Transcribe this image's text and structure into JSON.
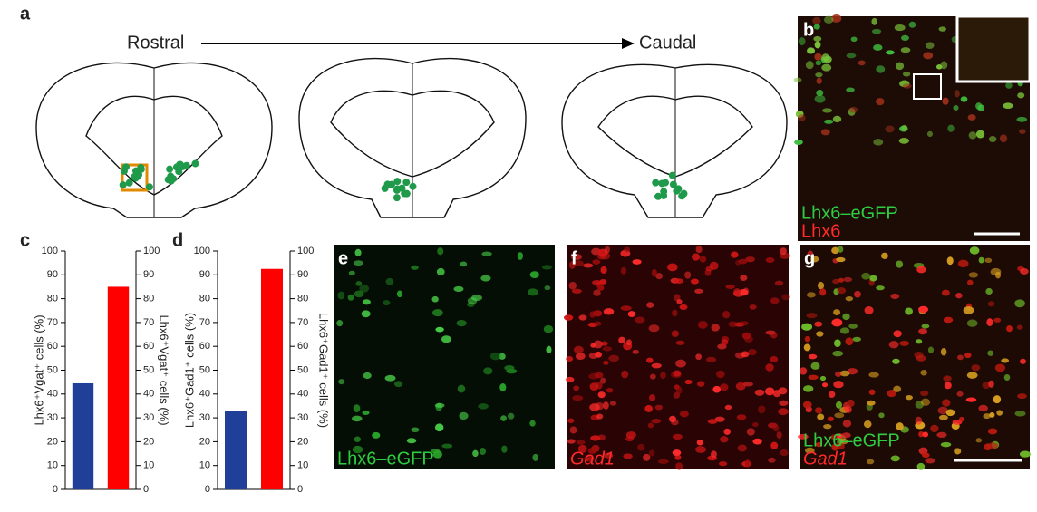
{
  "panels": {
    "a": {
      "label": "a",
      "left": "Rostral",
      "right": "Caudal"
    },
    "b": {
      "label": "b",
      "green": "Lhx6–eGFP",
      "red": "Lhx6"
    },
    "e": {
      "label": "e",
      "green": "Lhx6–eGFP"
    },
    "f": {
      "label": "f",
      "red": "Gad1"
    },
    "g": {
      "label": "g",
      "green": "Lhx6–eGFP",
      "red": "Gad1"
    }
  },
  "chart_data": [
    {
      "type": "bar",
      "label": "c",
      "categories": [
        null,
        null
      ],
      "values": [
        44.5,
        85
      ],
      "colors": [
        "#1f3f99",
        "#ff0000"
      ],
      "ylabel": "Lhx6⁺Vgat⁺ cells (%)",
      "y2label": "Lhx6⁺Vgat⁺ cells (%)",
      "ylim": [
        0,
        100
      ],
      "yticks": [
        0,
        10,
        20,
        30,
        40,
        50,
        60,
        70,
        80,
        90,
        100
      ],
      "y2lim": [
        0,
        100
      ],
      "y2ticks": [
        0,
        10,
        20,
        30,
        40,
        50,
        60,
        70,
        80,
        90,
        100
      ]
    },
    {
      "type": "bar",
      "label": "d",
      "categories": [
        null,
        null
      ],
      "values": [
        33,
        92.5
      ],
      "colors": [
        "#1f3f99",
        "#ff0000"
      ],
      "ylabel": "Lhx6⁺Gad1⁺ cells (%)",
      "y2label": "Lhx6⁺Gad1⁺ cells (%)",
      "ylim": [
        0,
        100
      ],
      "yticks": [
        0,
        10,
        20,
        30,
        40,
        50,
        60,
        70,
        80,
        90,
        100
      ],
      "y2lim": [
        0,
        100
      ],
      "y2ticks": [
        0,
        10,
        20,
        30,
        40,
        50,
        60,
        70,
        80,
        90,
        100
      ]
    }
  ]
}
